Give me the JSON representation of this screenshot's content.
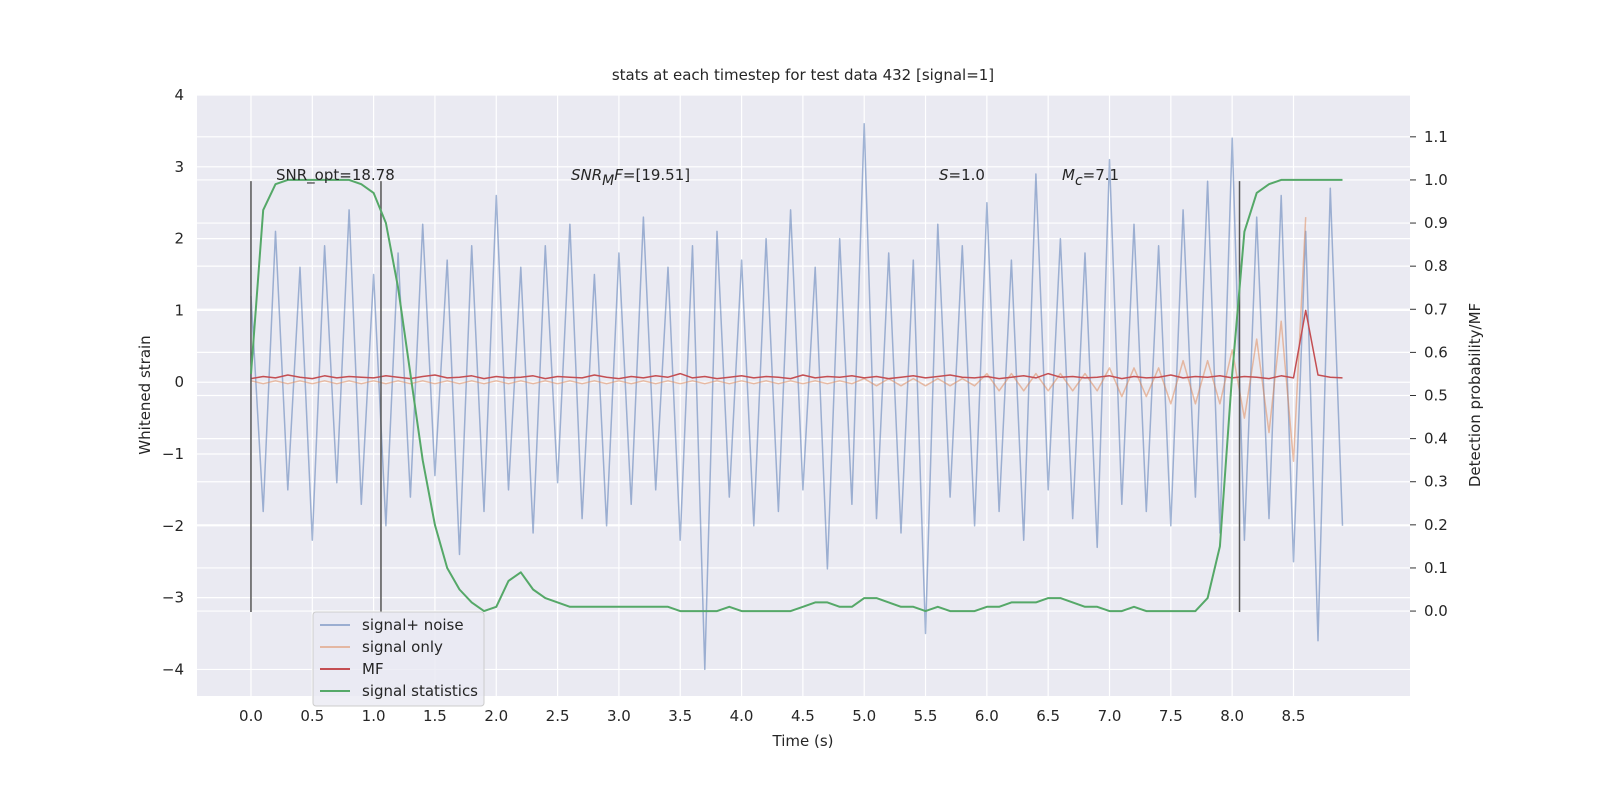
{
  "chart_data": {
    "type": "line",
    "title": "stats at each timestep for test data 432 [signal=1]",
    "xlabel": "Time (s)",
    "ylabel": "Whitened strain",
    "y2label": "Detection probability/MF",
    "xlim": [
      -0.44,
      9.45
    ],
    "ylim": [
      -4.37,
      4.0
    ],
    "y2lim": [
      -0.197,
      1.197
    ],
    "xticks": [
      {
        "value": 0,
        "label": "0.0"
      },
      {
        "value": 0.5,
        "label": "0.5"
      },
      {
        "value": 1,
        "label": "1.0"
      },
      {
        "value": 1.5,
        "label": "1.5"
      },
      {
        "value": 2,
        "label": "2.0"
      },
      {
        "value": 2.5,
        "label": "2.5"
      },
      {
        "value": 3,
        "label": "3.0"
      },
      {
        "value": 3.5,
        "label": "3.5"
      },
      {
        "value": 4,
        "label": "4.0"
      },
      {
        "value": 4.5,
        "label": "4.5"
      },
      {
        "value": 5,
        "label": "5.0"
      },
      {
        "value": 5.5,
        "label": "5.5"
      },
      {
        "value": 6,
        "label": "6.0"
      },
      {
        "value": 6.5,
        "label": "6.5"
      },
      {
        "value": 7,
        "label": "7.0"
      },
      {
        "value": 7.5,
        "label": "7.5"
      },
      {
        "value": 8,
        "label": "8.0"
      },
      {
        "value": 8.5,
        "label": "8.5"
      }
    ],
    "yticks": [
      {
        "value": -4,
        "label": "−4"
      },
      {
        "value": -3,
        "label": "−3"
      },
      {
        "value": -2,
        "label": "−2"
      },
      {
        "value": -1,
        "label": "−1"
      },
      0,
      1,
      2,
      3,
      4
    ],
    "y2ticks": [
      {
        "value": 0,
        "label": "0.0"
      },
      {
        "value": 0.1,
        "label": "0.1"
      },
      {
        "value": 0.2,
        "label": "0.2"
      },
      {
        "value": 0.3,
        "label": "0.3"
      },
      {
        "value": 0.4,
        "label": "0.4"
      },
      {
        "value": 0.5,
        "label": "0.5"
      },
      {
        "value": 0.6,
        "label": "0.6"
      },
      {
        "value": 0.7,
        "label": "0.7"
      },
      {
        "value": 0.8,
        "label": "0.8"
      },
      {
        "value": 0.9,
        "label": "0.9"
      },
      {
        "value": 1,
        "label": "1.0"
      },
      {
        "value": 1.1,
        "label": "1.1"
      }
    ],
    "grid": true,
    "legend": "lower left",
    "x": [
      0,
      0.1,
      0.2,
      0.3,
      0.4,
      0.5,
      0.6,
      0.7,
      0.8,
      0.9,
      1,
      1.1,
      1.2,
      1.3,
      1.4,
      1.5,
      1.6,
      1.7,
      1.8,
      1.9,
      2,
      2.1,
      2.2,
      2.3,
      2.4,
      2.5,
      2.6,
      2.7,
      2.8,
      2.9,
      3,
      3.1,
      3.2,
      3.3,
      3.4,
      3.5,
      3.6,
      3.7,
      3.8,
      3.9,
      4,
      4.1,
      4.2,
      4.3,
      4.4,
      4.5,
      4.6,
      4.7,
      4.8,
      4.9,
      5,
      5.1,
      5.2,
      5.3,
      5.4,
      5.5,
      5.6,
      5.7,
      5.8,
      5.9,
      6,
      6.1,
      6.2,
      6.3,
      6.4,
      6.5,
      6.6,
      6.7,
      6.8,
      6.9,
      7,
      7.1,
      7.2,
      7.3,
      7.4,
      7.5,
      7.6,
      7.7,
      7.8,
      7.9,
      8,
      8.1,
      8.2,
      8.3,
      8.4,
      8.5,
      8.6,
      8.7,
      8.8,
      8.9
    ],
    "series": [
      {
        "name": "signal+ noise",
        "color": "#4c72b0",
        "alpha": 0.5,
        "values": [
          1.2,
          -1.8,
          2.1,
          -1.5,
          1.6,
          -2.2,
          1.9,
          -1.4,
          2.4,
          -1.7,
          1.5,
          -2.0,
          1.8,
          -1.6,
          2.2,
          -1.3,
          1.7,
          -2.4,
          1.9,
          -1.8,
          2.6,
          -1.5,
          1.6,
          -2.1,
          1.9,
          -1.4,
          2.2,
          -1.9,
          1.5,
          -2.0,
          1.8,
          -1.7,
          2.3,
          -1.5,
          1.6,
          -2.2,
          1.9,
          -4.0,
          2.1,
          -1.6,
          1.7,
          -2.0,
          2.0,
          -1.8,
          2.4,
          -1.5,
          1.6,
          -2.6,
          2.0,
          -1.7,
          3.6,
          -1.9,
          1.8,
          -2.1,
          1.7,
          -3.5,
          2.2,
          -1.6,
          1.9,
          -2.0,
          2.5,
          -1.8,
          1.7,
          -2.2,
          2.9,
          -1.5,
          2.0,
          -1.9,
          1.8,
          -2.3,
          3.1,
          -1.7,
          2.2,
          -1.8,
          1.9,
          -2.0,
          2.4,
          -1.6,
          2.8,
          -2.1,
          3.4,
          -2.2,
          2.3,
          -1.9,
          2.6,
          -2.5,
          2.1,
          -3.6,
          2.7,
          -2.0
        ]
      },
      {
        "name": "signal only",
        "color": "#dd8452",
        "alpha": 0.5,
        "values": [
          0.02,
          -0.02,
          0.02,
          -0.02,
          0.02,
          -0.02,
          0.02,
          -0.02,
          0.02,
          -0.02,
          0.02,
          -0.02,
          0.02,
          -0.02,
          0.02,
          -0.02,
          0.02,
          -0.02,
          0.02,
          -0.02,
          0.02,
          -0.02,
          0.02,
          -0.02,
          0.02,
          -0.02,
          0.02,
          -0.02,
          0.02,
          -0.02,
          0.02,
          -0.02,
          0.02,
          -0.02,
          0.02,
          -0.02,
          0.02,
          -0.02,
          0.02,
          -0.02,
          0.02,
          -0.02,
          0.02,
          -0.02,
          0.02,
          -0.02,
          0.02,
          -0.02,
          0.02,
          -0.02,
          0.05,
          -0.05,
          0.05,
          -0.05,
          0.05,
          -0.05,
          0.05,
          -0.05,
          0.05,
          -0.05,
          0.12,
          -0.12,
          0.12,
          -0.12,
          0.12,
          -0.12,
          0.12,
          -0.12,
          0.12,
          -0.12,
          0.2,
          -0.2,
          0.2,
          -0.2,
          0.2,
          -0.3,
          0.3,
          -0.3,
          0.3,
          -0.3,
          0.45,
          -0.5,
          0.6,
          -0.7,
          0.85,
          -1.1,
          2.3,
          null,
          null,
          null
        ]
      },
      {
        "name": "MF",
        "color": "#c44e52",
        "alpha": 1,
        "values": [
          0.05,
          0.08,
          0.06,
          0.1,
          0.07,
          0.05,
          0.09,
          0.06,
          0.08,
          0.07,
          0.06,
          0.09,
          0.07,
          0.05,
          0.08,
          0.1,
          0.06,
          0.07,
          0.09,
          0.05,
          0.08,
          0.06,
          0.07,
          0.09,
          0.05,
          0.08,
          0.07,
          0.06,
          0.1,
          0.07,
          0.05,
          0.08,
          0.06,
          0.09,
          0.07,
          0.12,
          0.06,
          0.08,
          0.05,
          0.07,
          0.09,
          0.06,
          0.08,
          0.07,
          0.05,
          0.1,
          0.06,
          0.08,
          0.07,
          0.09,
          0.06,
          0.08,
          0.05,
          0.07,
          0.09,
          0.06,
          0.08,
          0.1,
          0.07,
          0.06,
          0.08,
          0.05,
          0.07,
          0.09,
          0.06,
          0.12,
          0.07,
          0.08,
          0.06,
          0.07,
          0.09,
          0.05,
          0.08,
          0.06,
          0.07,
          0.1,
          0.06,
          0.08,
          0.07,
          0.09,
          0.06,
          0.08,
          0.07,
          0.05,
          0.09,
          0.06,
          1.0,
          0.1,
          0.07,
          0.06
        ]
      },
      {
        "name": "signal statistics",
        "color": "#55a868",
        "alpha": 1,
        "axis": "y2",
        "values": [
          0.55,
          0.93,
          0.99,
          1.0,
          1.0,
          1.0,
          1.0,
          1.0,
          1.0,
          0.99,
          0.97,
          0.9,
          0.75,
          0.55,
          0.35,
          0.2,
          0.1,
          0.05,
          0.02,
          0.0,
          0.01,
          0.07,
          0.09,
          0.05,
          0.03,
          0.02,
          0.01,
          0.01,
          0.01,
          0.01,
          0.01,
          0.01,
          0.01,
          0.01,
          0.01,
          0.0,
          0.0,
          0.0,
          0.0,
          0.01,
          0.0,
          0.0,
          0.0,
          0.0,
          0.0,
          0.01,
          0.02,
          0.02,
          0.01,
          0.01,
          0.03,
          0.03,
          0.02,
          0.01,
          0.01,
          0.0,
          0.01,
          0.0,
          0.0,
          0.0,
          0.01,
          0.01,
          0.02,
          0.02,
          0.02,
          0.03,
          0.03,
          0.02,
          0.01,
          0.01,
          0.0,
          0.0,
          0.01,
          0.0,
          0.0,
          0.0,
          0.0,
          0.0,
          0.03,
          0.15,
          0.55,
          0.88,
          0.97,
          0.99,
          1.0,
          1.0,
          1.0,
          1.0,
          1.0,
          1.0
        ]
      }
    ],
    "vlines": {
      "x": [
        0,
        1.06,
        8.06
      ],
      "ymin": -3.2,
      "ymax": 2.8,
      "color": "#555555"
    },
    "annotations": [
      [
        {
          "text": "SNR_opt=18.78"
        }
      ],
      [
        {
          "text": "SNR",
          "italic": true
        },
        {
          "text": "M",
          "italic": true,
          "sub": true
        },
        {
          "text": "F",
          "italic": true
        },
        {
          "text": "=[19.51]"
        }
      ],
      [
        {
          "text": "S",
          "italic": true
        },
        {
          "text": "=1.0"
        }
      ],
      [
        {
          "text": "M",
          "italic": true
        },
        {
          "text": "c",
          "italic": true,
          "sub": true
        },
        {
          "text": "=7.1"
        }
      ]
    ]
  }
}
